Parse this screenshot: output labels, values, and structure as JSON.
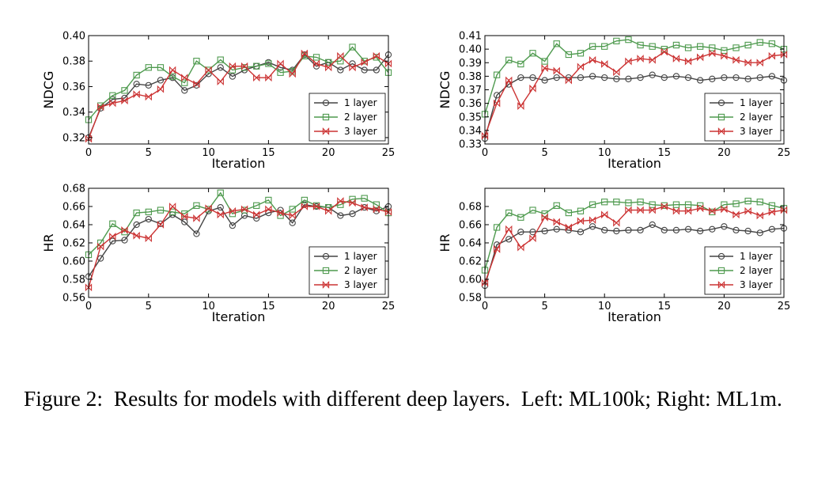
{
  "caption": {
    "label": "Figure 2:",
    "text": "Results for models with different deep layers.",
    "left": "Left: ML100k;",
    "right": "Right: ML1m."
  },
  "colors": {
    "series_1": "#444444",
    "series_2": "#4e9a4e",
    "series_3": "#cc3333"
  },
  "chart_data": [
    {
      "type": "line",
      "panel": "top-left",
      "dataset": "ML100k",
      "xlabel": "Iteration",
      "ylabel": "NDCG",
      "xlim": [
        0,
        25
      ],
      "ylim": [
        0.315,
        0.4
      ],
      "xticks": [
        0,
        5,
        10,
        15,
        20,
        25
      ],
      "yticks": [
        0.32,
        0.34,
        0.36,
        0.38,
        0.4
      ],
      "ytick_labels": [
        "0.32",
        "0.34",
        "0.36",
        "0.38",
        "0.40"
      ],
      "x": [
        0,
        1,
        2,
        3,
        4,
        5,
        6,
        7,
        8,
        9,
        10,
        11,
        12,
        13,
        14,
        15,
        16,
        17,
        18,
        19,
        20,
        21,
        22,
        23,
        24,
        25
      ],
      "series": [
        {
          "name": "1 layer",
          "marker": "circle",
          "values": [
            0.32,
            0.343,
            0.35,
            0.351,
            0.362,
            0.361,
            0.365,
            0.367,
            0.357,
            0.361,
            0.37,
            0.375,
            0.368,
            0.373,
            0.376,
            0.379,
            0.375,
            0.373,
            0.385,
            0.376,
            0.379,
            0.373,
            0.378,
            0.373,
            0.373,
            0.385
          ]
        },
        {
          "name": "2 layer",
          "marker": "square",
          "values": [
            0.334,
            0.345,
            0.353,
            0.357,
            0.369,
            0.375,
            0.375,
            0.368,
            0.363,
            0.38,
            0.373,
            0.381,
            0.373,
            0.375,
            0.376,
            0.378,
            0.371,
            0.372,
            0.384,
            0.383,
            0.379,
            0.38,
            0.391,
            0.38,
            0.383,
            0.371
          ]
        },
        {
          "name": "3 layer",
          "marker": "bowtie",
          "values": [
            0.319,
            0.344,
            0.347,
            0.349,
            0.354,
            0.352,
            0.358,
            0.373,
            0.367,
            0.362,
            0.373,
            0.364,
            0.376,
            0.376,
            0.367,
            0.367,
            0.378,
            0.37,
            0.386,
            0.378,
            0.375,
            0.384,
            0.375,
            0.379,
            0.384,
            0.378
          ]
        }
      ],
      "legend": "lower-right"
    },
    {
      "type": "line",
      "panel": "top-right",
      "dataset": "ML1m",
      "xlabel": "Iteration",
      "ylabel": "NDCG",
      "xlim": [
        0,
        25
      ],
      "ylim": [
        0.33,
        0.41
      ],
      "xticks": [
        0,
        5,
        10,
        15,
        20,
        25
      ],
      "yticks": [
        0.33,
        0.34,
        0.35,
        0.36,
        0.37,
        0.38,
        0.39,
        0.4,
        0.41
      ],
      "ytick_labels": [
        "0.33",
        "0.34",
        "0.35",
        "0.36",
        "0.37",
        "0.38",
        "0.39",
        "0.40",
        "0.41"
      ],
      "x": [
        0,
        1,
        2,
        3,
        4,
        5,
        6,
        7,
        8,
        9,
        10,
        11,
        12,
        13,
        14,
        15,
        16,
        17,
        18,
        19,
        20,
        21,
        22,
        23,
        24,
        25
      ],
      "series": [
        {
          "name": "1 layer",
          "marker": "circle",
          "values": [
            0.334,
            0.366,
            0.374,
            0.379,
            0.379,
            0.377,
            0.379,
            0.379,
            0.379,
            0.38,
            0.379,
            0.378,
            0.378,
            0.379,
            0.381,
            0.379,
            0.38,
            0.379,
            0.377,
            0.378,
            0.379,
            0.379,
            0.378,
            0.379,
            0.38,
            0.377
          ]
        },
        {
          "name": "2 layer",
          "marker": "square",
          "values": [
            0.352,
            0.381,
            0.392,
            0.389,
            0.397,
            0.391,
            0.404,
            0.396,
            0.397,
            0.402,
            0.402,
            0.406,
            0.407,
            0.403,
            0.402,
            0.4,
            0.403,
            0.401,
            0.402,
            0.401,
            0.399,
            0.401,
            0.403,
            0.405,
            0.404,
            0.4
          ]
        },
        {
          "name": "3 layer",
          "marker": "bowtie",
          "values": [
            0.336,
            0.36,
            0.377,
            0.358,
            0.371,
            0.386,
            0.384,
            0.377,
            0.387,
            0.392,
            0.389,
            0.383,
            0.391,
            0.393,
            0.392,
            0.398,
            0.393,
            0.391,
            0.394,
            0.397,
            0.395,
            0.392,
            0.39,
            0.39,
            0.395,
            0.396
          ]
        }
      ],
      "legend": "lower-right"
    },
    {
      "type": "line",
      "panel": "bottom-left",
      "dataset": "ML100k",
      "xlabel": "Iteration",
      "ylabel": "HR",
      "xlim": [
        0,
        25
      ],
      "ylim": [
        0.56,
        0.68
      ],
      "xticks": [
        0,
        5,
        10,
        15,
        20,
        25
      ],
      "yticks": [
        0.56,
        0.58,
        0.6,
        0.62,
        0.64,
        0.66,
        0.68
      ],
      "ytick_labels": [
        "0.56",
        "0.58",
        "0.60",
        "0.62",
        "0.64",
        "0.66",
        "0.68"
      ],
      "x": [
        0,
        1,
        2,
        3,
        4,
        5,
        6,
        7,
        8,
        9,
        10,
        11,
        12,
        13,
        14,
        15,
        16,
        17,
        18,
        19,
        20,
        21,
        22,
        23,
        24,
        25
      ],
      "series": [
        {
          "name": "1 layer",
          "marker": "circle",
          "values": [
            0.583,
            0.603,
            0.622,
            0.623,
            0.64,
            0.646,
            0.641,
            0.651,
            0.643,
            0.63,
            0.655,
            0.659,
            0.639,
            0.65,
            0.647,
            0.653,
            0.656,
            0.642,
            0.662,
            0.66,
            0.659,
            0.65,
            0.652,
            0.659,
            0.655,
            0.66
          ]
        },
        {
          "name": "2 layer",
          "marker": "square",
          "values": [
            0.607,
            0.62,
            0.641,
            0.632,
            0.653,
            0.654,
            0.656,
            0.654,
            0.652,
            0.661,
            0.657,
            0.675,
            0.652,
            0.656,
            0.661,
            0.667,
            0.65,
            0.657,
            0.667,
            0.661,
            0.659,
            0.662,
            0.668,
            0.669,
            0.662,
            0.653
          ]
        },
        {
          "name": "3 layer",
          "marker": "bowtie",
          "values": [
            0.571,
            0.616,
            0.627,
            0.634,
            0.628,
            0.625,
            0.64,
            0.66,
            0.649,
            0.647,
            0.658,
            0.651,
            0.655,
            0.657,
            0.651,
            0.657,
            0.653,
            0.65,
            0.66,
            0.66,
            0.655,
            0.666,
            0.664,
            0.659,
            0.657,
            0.654
          ]
        }
      ],
      "legend": "lower-right"
    },
    {
      "type": "line",
      "panel": "bottom-right",
      "dataset": "ML1m",
      "xlabel": "Iteration",
      "ylabel": "HR",
      "xlim": [
        0,
        25
      ],
      "ylim": [
        0.58,
        0.7
      ],
      "xticks": [
        0,
        5,
        10,
        15,
        20,
        25
      ],
      "yticks": [
        0.58,
        0.6,
        0.62,
        0.64,
        0.66,
        0.68
      ],
      "ytick_labels": [
        "0.58",
        "0.60",
        "0.62",
        "0.64",
        "0.66",
        "0.68"
      ],
      "x": [
        0,
        1,
        2,
        3,
        4,
        5,
        6,
        7,
        8,
        9,
        10,
        11,
        12,
        13,
        14,
        15,
        16,
        17,
        18,
        19,
        20,
        21,
        22,
        23,
        24,
        25
      ],
      "series": [
        {
          "name": "1 layer",
          "marker": "circle",
          "values": [
            0.593,
            0.638,
            0.644,
            0.652,
            0.652,
            0.653,
            0.655,
            0.654,
            0.652,
            0.658,
            0.654,
            0.653,
            0.654,
            0.654,
            0.66,
            0.654,
            0.654,
            0.655,
            0.653,
            0.655,
            0.658,
            0.654,
            0.653,
            0.651,
            0.655,
            0.656
          ]
        },
        {
          "name": "2 layer",
          "marker": "square",
          "values": [
            0.61,
            0.657,
            0.673,
            0.668,
            0.676,
            0.672,
            0.681,
            0.673,
            0.675,
            0.682,
            0.685,
            0.685,
            0.684,
            0.685,
            0.682,
            0.681,
            0.682,
            0.682,
            0.681,
            0.674,
            0.682,
            0.683,
            0.686,
            0.685,
            0.681,
            0.678
          ]
        },
        {
          "name": "3 layer",
          "marker": "bowtie",
          "values": [
            0.596,
            0.633,
            0.655,
            0.635,
            0.645,
            0.668,
            0.663,
            0.657,
            0.664,
            0.665,
            0.671,
            0.662,
            0.676,
            0.676,
            0.676,
            0.68,
            0.675,
            0.675,
            0.678,
            0.675,
            0.677,
            0.671,
            0.675,
            0.67,
            0.674,
            0.676
          ]
        }
      ],
      "legend": "lower-right"
    }
  ]
}
